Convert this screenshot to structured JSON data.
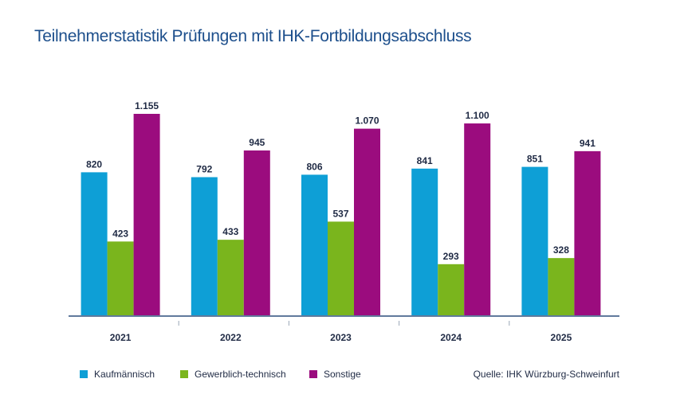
{
  "chart_data": {
    "type": "bar",
    "title": "Teilnehmerstatistik Prüfungen mit IHK-Fortbildungsabschluss",
    "categories": [
      "2021",
      "2022",
      "2023",
      "2024",
      "2025"
    ],
    "series": [
      {
        "name": "Kaufmännisch",
        "color": "#0e9fd6",
        "values": [
          820,
          792,
          806,
          841,
          851
        ],
        "labels": [
          "820",
          "792",
          "806",
          "841",
          "851"
        ]
      },
      {
        "name": "Gewerblich-technisch",
        "color": "#7ab51d",
        "values": [
          423,
          433,
          537,
          293,
          328
        ],
        "labels": [
          "423",
          "433",
          "537",
          "293",
          "328"
        ]
      },
      {
        "name": "Sonstige",
        "color": "#9b0c7e",
        "values": [
          1155,
          945,
          1070,
          1100,
          941
        ],
        "labels": [
          "1.155",
          "945",
          "1.070",
          "1.100",
          "941"
        ]
      }
    ],
    "ylim": [
      0,
      1155
    ],
    "xlabel": "",
    "ylabel": "",
    "grid": false,
    "legend": "bottom-left",
    "source": "Quelle: IHK Würzburg-Schweinfurt"
  }
}
